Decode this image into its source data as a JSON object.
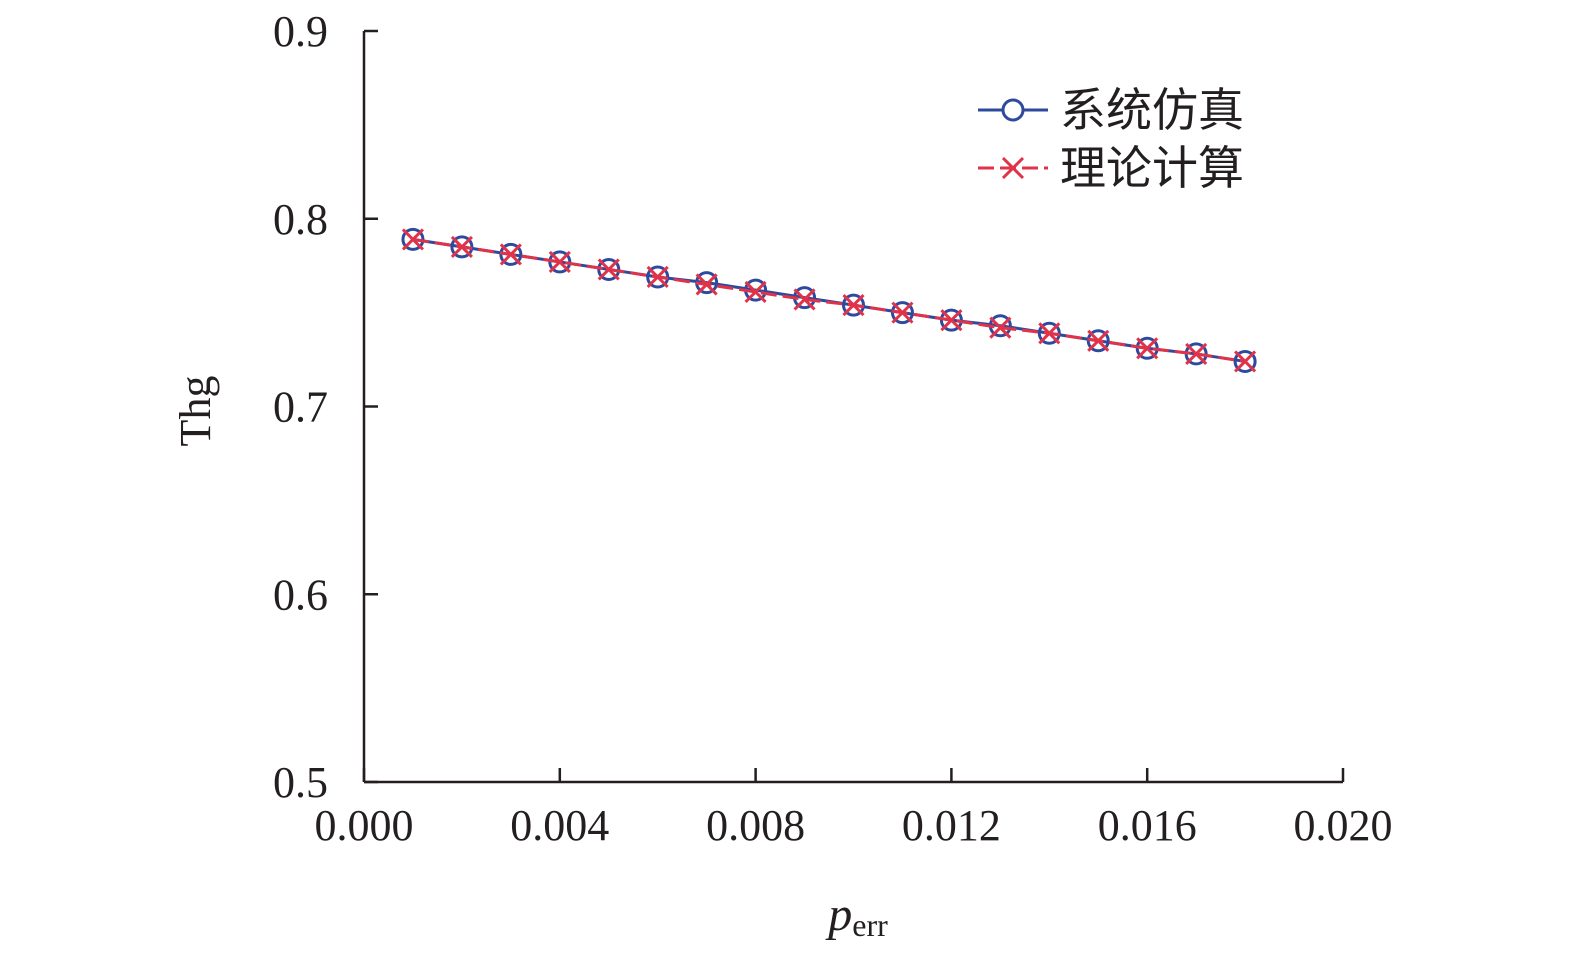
{
  "chart_data": {
    "type": "line",
    "xlabel": {
      "main": "p",
      "sub": "err"
    },
    "ylabel": "Thg",
    "xlim": [
      0.0,
      0.02
    ],
    "ylim": [
      0.5,
      0.9
    ],
    "xticks": [
      "0.000",
      "0.004",
      "0.008",
      "0.012",
      "0.016",
      "0.020"
    ],
    "xtick_values": [
      0.0,
      0.004,
      0.008,
      0.012,
      0.016,
      0.02
    ],
    "yticks": [
      "0.5",
      "0.6",
      "0.7",
      "0.8",
      "0.9"
    ],
    "ytick_values": [
      0.5,
      0.6,
      0.7,
      0.8,
      0.9
    ],
    "grid": false,
    "legend_position": "top-right",
    "x": [
      0.001,
      0.002,
      0.003,
      0.004,
      0.005,
      0.006,
      0.007,
      0.008,
      0.009,
      0.01,
      0.011,
      0.012,
      0.013,
      0.014,
      0.015,
      0.016,
      0.017,
      0.018
    ],
    "series": [
      {
        "name": "系统仿真",
        "color": "#2e4a9e",
        "marker": "circle",
        "line": "solid",
        "values": [
          0.789,
          0.785,
          0.781,
          0.777,
          0.773,
          0.769,
          0.766,
          0.762,
          0.758,
          0.754,
          0.75,
          0.746,
          0.743,
          0.739,
          0.735,
          0.731,
          0.728,
          0.724
        ]
      },
      {
        "name": "理论计算",
        "color": "#e0334a",
        "marker": "x",
        "line": "dashed",
        "values": [
          0.789,
          0.785,
          0.781,
          0.777,
          0.773,
          0.769,
          0.765,
          0.761,
          0.757,
          0.754,
          0.75,
          0.746,
          0.742,
          0.739,
          0.735,
          0.731,
          0.728,
          0.724
        ]
      }
    ]
  }
}
